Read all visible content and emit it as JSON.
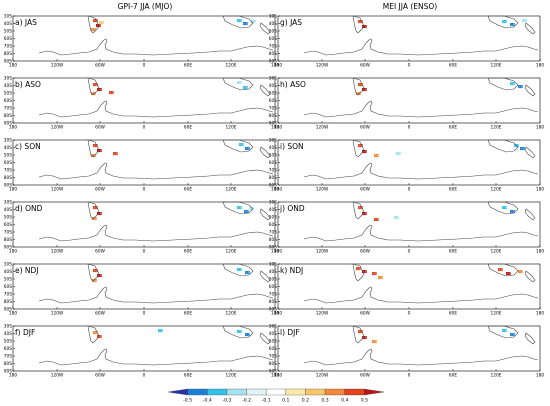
{
  "columns": [
    {
      "title": "GPI-7 JJA (MJO)"
    },
    {
      "title": "MEI JJA (ENSO)"
    }
  ],
  "panels": [
    {
      "label": "a) JAS"
    },
    {
      "label": "g) JAS"
    },
    {
      "label": "b) ASO"
    },
    {
      "label": "h) ASO"
    },
    {
      "label": "c) SON"
    },
    {
      "label": "i) SON"
    },
    {
      "label": "d) OND"
    },
    {
      "label": "j) OND"
    },
    {
      "label": "e) NDJ"
    },
    {
      "label": "k) NDJ"
    },
    {
      "label": "f) DJF"
    },
    {
      "label": "l) DJF"
    }
  ],
  "lat_ticks": [
    "30S",
    "40S",
    "50S",
    "60S",
    "70S",
    "80S",
    "90S"
  ],
  "lon_ticks": [
    "180",
    "120W",
    "60W",
    "0",
    "60E",
    "120E",
    "180"
  ],
  "colorbar": {
    "ticks": [
      "-0.5",
      "-0.4",
      "-0.3",
      "-0.2",
      "-0.1",
      "0.1",
      "0.2",
      "0.3",
      "0.4",
      "0.5"
    ],
    "colors": [
      "#2b2fa8",
      "#1a7fd6",
      "#35c2e8",
      "#a5e3f0",
      "#dff4f8",
      "#ffffff",
      "#fbe9a8",
      "#f7c86a",
      "#f08a3a",
      "#e0421c",
      "#b81410"
    ]
  },
  "legend_text": {
    "neg": "",
    "pos": ""
  },
  "colors": {
    "coast": "#444444",
    "frame": "#000000"
  }
}
